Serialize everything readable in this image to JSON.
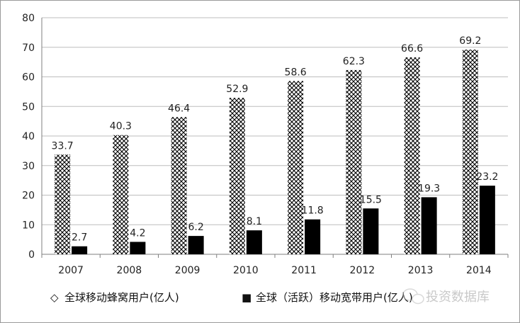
{
  "chart_data": {
    "type": "bar",
    "title": "",
    "xlabel": "",
    "ylabel": "",
    "ylim": [
      0,
      80
    ],
    "yticks": [
      0,
      10,
      20,
      30,
      40,
      50,
      60,
      70,
      80
    ],
    "grid": true,
    "legend_position": "bottom",
    "categories": [
      "2007",
      "2008",
      "2009",
      "2010",
      "2011",
      "2012",
      "2013",
      "2014"
    ],
    "series": [
      {
        "name": "全球移动蜂窝用户(亿人)",
        "pattern": "crosshatch",
        "values": [
          33.7,
          40.3,
          46.4,
          52.9,
          58.6,
          62.3,
          66.6,
          69.2
        ],
        "labels": [
          "33.7",
          "40.3",
          "46.4",
          "52.9",
          "58.6",
          "62.3",
          "66.6",
          "69.2"
        ]
      },
      {
        "name": "全球（活跃）移动宽带用户(亿人)",
        "legend_text": "全球（活跃）移动宽带用户(亿人)",
        "pattern": "solid",
        "values": [
          2.7,
          4.2,
          6.2,
          8.1,
          11.8,
          15.5,
          19.3,
          23.2
        ],
        "labels": [
          "2.7",
          "4.2",
          "6.2",
          "8.1",
          "11.8",
          "15.5",
          "19.3",
          "23.2"
        ]
      }
    ]
  },
  "legend": {
    "symbol_crosshatch": "◇",
    "symbol_solid": "■",
    "label_1": "全球移动蜂窝用户(亿人)",
    "label_2": "全球（活跃）移动宽带用户(亿人)"
  },
  "watermark": {
    "text": "投资数据库",
    "icon": "wechat-icon"
  },
  "colors": {
    "bar_dark": "#000000",
    "grid": "#bdbdbd",
    "axis": "#7f7f7f",
    "watermark": "#c8c8c8"
  }
}
